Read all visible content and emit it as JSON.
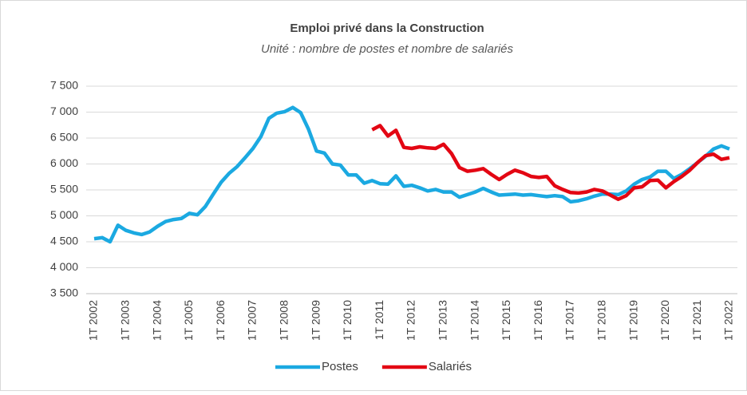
{
  "chart_data": {
    "type": "line",
    "title": "Emploi privé dans la Construction",
    "subtitle": "Unité : nombre de postes et nombre de salariés",
    "categories": [
      "1T 2002",
      null,
      null,
      null,
      "1T 2003",
      null,
      null,
      null,
      "1T 2004",
      null,
      null,
      null,
      "1T 2005",
      null,
      null,
      null,
      "1T 2006",
      null,
      null,
      null,
      "1T 2007",
      null,
      null,
      null,
      "1T 2008",
      null,
      null,
      null,
      "1T 2009",
      null,
      null,
      null,
      "1T 2010",
      null,
      null,
      null,
      "1T 2011",
      null,
      null,
      null,
      "1T 2012",
      null,
      null,
      null,
      "1T 2013",
      null,
      null,
      null,
      "1T 2014",
      null,
      null,
      null,
      "1T 2015",
      null,
      null,
      null,
      "1T 2016",
      null,
      null,
      null,
      "1T 2017",
      null,
      null,
      null,
      "1T 2018",
      null,
      null,
      null,
      "1T 2019",
      null,
      null,
      null,
      "1T 2020",
      null,
      null,
      null,
      "1T 2021",
      null,
      null,
      null,
      "1T 2022"
    ],
    "series": [
      {
        "name": "Postes",
        "color": "#1ba9e1",
        "values": [
          4560,
          4580,
          4500,
          4820,
          4720,
          4670,
          4640,
          4690,
          4800,
          4890,
          4930,
          4950,
          5050,
          5020,
          5180,
          5420,
          5650,
          5820,
          5950,
          6120,
          6300,
          6530,
          6880,
          6980,
          7010,
          7090,
          6990,
          6670,
          6250,
          6210,
          6000,
          5980,
          5790,
          5790,
          5630,
          5680,
          5620,
          5610,
          5770,
          5570,
          5590,
          5540,
          5480,
          5510,
          5460,
          5460,
          5360,
          5410,
          5460,
          5530,
          5460,
          5400,
          5410,
          5420,
          5400,
          5410,
          5390,
          5370,
          5390,
          5370,
          5270,
          5290,
          5330,
          5380,
          5420,
          5420,
          5410,
          5480,
          5610,
          5700,
          5750,
          5860,
          5860,
          5720,
          5800,
          5910,
          6030,
          6150,
          6290,
          6350,
          6290
        ]
      },
      {
        "name": "Salariés",
        "color": "#e30613",
        "values": [
          null,
          null,
          null,
          null,
          null,
          null,
          null,
          null,
          null,
          null,
          null,
          null,
          null,
          null,
          null,
          null,
          null,
          null,
          null,
          null,
          null,
          null,
          null,
          null,
          null,
          null,
          null,
          null,
          null,
          null,
          null,
          null,
          null,
          null,
          null,
          6660,
          6740,
          6540,
          6650,
          6320,
          6300,
          6330,
          6310,
          6300,
          6380,
          6200,
          5930,
          5860,
          5880,
          5910,
          5800,
          5700,
          5800,
          5880,
          5830,
          5760,
          5740,
          5760,
          5580,
          5510,
          5450,
          5440,
          5460,
          5510,
          5480,
          5400,
          5320,
          5390,
          5540,
          5560,
          5680,
          5690,
          5540,
          5660,
          5760,
          5880,
          6030,
          6160,
          6190,
          6090,
          6120
        ]
      }
    ],
    "ylim": [
      3500,
      7500
    ],
    "yticks": [
      {
        "value": 3500,
        "label": "3 500"
      },
      {
        "value": 4000,
        "label": "4 000"
      },
      {
        "value": 4500,
        "label": "4 500"
      },
      {
        "value": 5000,
        "label": "5 000"
      },
      {
        "value": 5500,
        "label": "5 500"
      },
      {
        "value": 6000,
        "label": "6 000"
      },
      {
        "value": 6500,
        "label": "6 500"
      },
      {
        "value": 7000,
        "label": "7 000"
      },
      {
        "value": 7500,
        "label": "7 500"
      }
    ],
    "grid": true,
    "legend": "bottom"
  }
}
